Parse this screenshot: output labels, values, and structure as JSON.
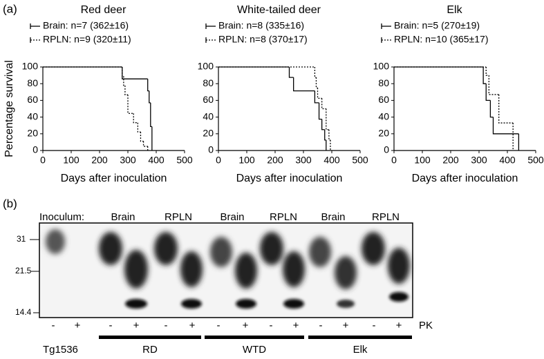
{
  "panel_a_label": "(a)",
  "chart_data": [
    {
      "type": "line",
      "step": "post",
      "title": "Red deer",
      "xlabel": "Days after inoculation",
      "ylabel": "Percentage survival",
      "xlim": [
        0,
        500
      ],
      "xticks": [
        0,
        100,
        200,
        300,
        400,
        500
      ],
      "ylim": [
        0,
        100
      ],
      "yticks": [
        0,
        20,
        40,
        60,
        80,
        100
      ],
      "series": [
        {
          "name": "Brain: n=7 (362±16)",
          "color": "#000000",
          "dash": "solid",
          "x": [
            0,
            280,
            370,
            375,
            380,
            385
          ],
          "values": [
            100,
            85.7,
            71.4,
            57.1,
            28.6,
            0
          ]
        },
        {
          "name": "RPLN: n=9 (320±11)",
          "color": "#000000",
          "dash": "dotted",
          "x": [
            0,
            280,
            285,
            290,
            300,
            320,
            335,
            345,
            355,
            370
          ],
          "values": [
            100,
            88.9,
            77.8,
            66.7,
            44.4,
            33.3,
            22.2,
            11.1,
            5,
            0
          ]
        }
      ]
    },
    {
      "type": "line",
      "step": "post",
      "title": "White-tailed deer",
      "xlabel": "Days after inoculation",
      "xlim": [
        0,
        500
      ],
      "xticks": [
        0,
        100,
        200,
        300,
        400,
        500
      ],
      "ylim": [
        0,
        100
      ],
      "yticks": [
        0,
        20,
        40,
        60,
        80,
        100
      ],
      "series": [
        {
          "name": "Brain: n=8 (335±16)",
          "color": "#000000",
          "dash": "solid",
          "x": [
            0,
            250,
            265,
            340,
            355,
            365,
            375,
            380
          ],
          "values": [
            100,
            87.5,
            71.4,
            57.1,
            37.5,
            25,
            12.5,
            0
          ]
        },
        {
          "name": "RPLN: n=8 (370±17)",
          "color": "#000000",
          "dash": "dotted",
          "x": [
            0,
            340,
            345,
            350,
            365,
            380,
            390,
            395
          ],
          "values": [
            100,
            87.5,
            75,
            62.5,
            50,
            25,
            12.5,
            0
          ]
        }
      ]
    },
    {
      "type": "line",
      "step": "post",
      "title": "Elk",
      "xlabel": "Days after inoculation",
      "xlim": [
        0,
        500
      ],
      "xticks": [
        0,
        100,
        200,
        300,
        400,
        500
      ],
      "ylim": [
        0,
        100
      ],
      "yticks": [
        0,
        20,
        40,
        60,
        80,
        100
      ],
      "series": [
        {
          "name": "Brain: n=5 (270±19)",
          "color": "#000000",
          "dash": "solid",
          "x": [
            0,
            315,
            325,
            340,
            350,
            440
          ],
          "values": [
            100,
            80,
            60,
            40,
            20,
            0
          ]
        },
        {
          "name": "RPLN: n=10 (365±17)",
          "color": "#000000",
          "dash": "dotted",
          "x": [
            0,
            325,
            335,
            370,
            420
          ],
          "values": [
            100,
            90,
            67,
            33,
            0
          ]
        }
      ]
    }
  ],
  "panel_b": {
    "label": "(b)",
    "inoculum": "Inoculum:",
    "lane_groups": [
      "Brain",
      "RPLN",
      "Brain",
      "RPLN",
      "Brain",
      "RPLN"
    ],
    "markers": [
      "31",
      "21.5",
      "14.4"
    ],
    "pk_lanes": [
      "-",
      "+",
      "-",
      "+",
      "-",
      "+",
      "-",
      "+",
      "-",
      "+",
      "-",
      "+",
      "-",
      "+"
    ],
    "pk": "PK",
    "control": "Tg1536",
    "groups": [
      "RD",
      "WTD",
      "Elk"
    ]
  }
}
